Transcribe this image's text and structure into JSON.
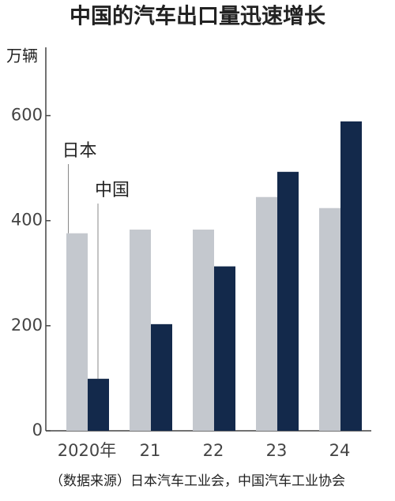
{
  "chart_data": {
    "type": "bar",
    "title": "中国的汽车出口量迅速增长",
    "y_label": "万辆",
    "categories": [
      "2020年",
      "21",
      "22",
      "23",
      "24"
    ],
    "series": [
      {
        "name": "日本",
        "color": "#c4c8ce",
        "values": [
          376,
          383,
          383,
          445,
          424
        ]
      },
      {
        "name": "中国",
        "color": "#13294b",
        "values": [
          99,
          203,
          313,
          493,
          589
        ]
      }
    ],
    "ylim": [
      0,
      730
    ],
    "yticks": [
      0,
      200,
      400,
      600
    ],
    "source": "（数据来源）日本汽车工业会，中国汽车工业协会"
  }
}
